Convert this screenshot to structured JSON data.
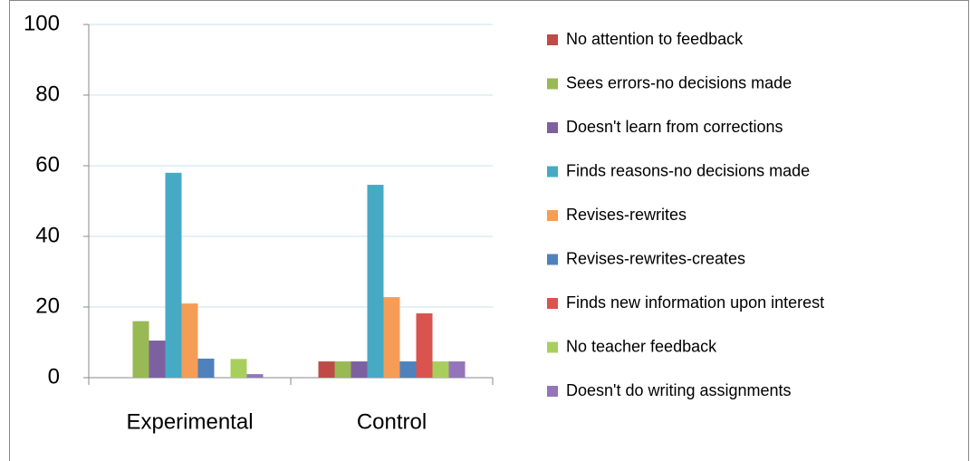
{
  "chart_data": {
    "type": "bar",
    "categories": [
      "Experimental",
      "Control"
    ],
    "series": [
      {
        "name": "No attention to feedback",
        "color": "#be4b48",
        "values": [
          0,
          4.6
        ]
      },
      {
        "name": "Sees errors-no decisions made",
        "color": "#98b954",
        "values": [
          16,
          4.6
        ]
      },
      {
        "name": "Doesn't learn from corrections",
        "color": "#7d60a0",
        "values": [
          10.5,
          4.6
        ]
      },
      {
        "name": "Finds reasons-no decisions made",
        "color": "#46aac5",
        "values": [
          58,
          54.6
        ]
      },
      {
        "name": "Revises-rewrites",
        "color": "#f59d56",
        "values": [
          21,
          22.8
        ]
      },
      {
        "name": "Revises-rewrites-creates",
        "color": "#4f81bd",
        "values": [
          5.4,
          4.6
        ]
      },
      {
        "name": "Finds new information upon interest",
        "color": "#d9534f",
        "values": [
          0,
          18.2
        ]
      },
      {
        "name": "No teacher feedback",
        "color": "#a8cf5e",
        "values": [
          5.3,
          4.6
        ]
      },
      {
        "name": "Doesn't do writing assignments",
        "color": "#9475b9",
        "values": [
          1,
          4.6
        ]
      }
    ],
    "ylim": [
      0,
      100
    ],
    "yticks": [
      0,
      20,
      40,
      60,
      80,
      100
    ],
    "grid": true,
    "legend": "right"
  }
}
